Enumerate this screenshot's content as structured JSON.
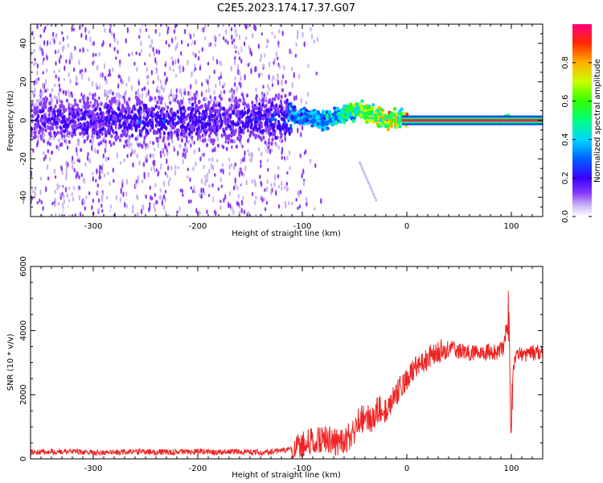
{
  "figure": {
    "title": "C2E5.2023.174.17.37.G07"
  },
  "chart_data": [
    {
      "type": "heatmap",
      "xlabel": "Height of straight line (km)",
      "ylabel": "Frequency (Hz)",
      "xlim": [
        -360,
        130
      ],
      "ylim": [
        -50,
        50
      ],
      "xticks": [
        -300,
        -200,
        -100,
        0,
        100
      ],
      "yticks": [
        -40,
        -20,
        0,
        20,
        40
      ],
      "colorbar": {
        "label": "Normalized spectral amplitude",
        "ticks": [
          "0.0",
          "0.2",
          "0.4",
          "0.6",
          "0.8"
        ],
        "range": [
          0,
          1
        ],
        "colormap": "rainbow"
      },
      "series": [
        {
          "x": [
            -360,
            -300,
            -250,
            -200,
            -150,
            -120,
            -110,
            -100,
            -80,
            -60,
            -45,
            -35,
            -25,
            -15,
            -5,
            0,
            20,
            50,
            90,
            95,
            100,
            130
          ],
          "y": [
            0,
            0,
            0,
            0,
            0,
            1,
            2,
            2,
            0,
            3,
            5,
            4,
            1,
            0,
            2,
            0,
            0,
            0,
            0,
            1,
            0,
            0
          ],
          "peak_amplitude": [
            0.25,
            0.3,
            0.3,
            0.3,
            0.3,
            0.35,
            0.45,
            0.45,
            0.5,
            0.6,
            0.75,
            0.8,
            0.85,
            0.9,
            0.7,
            0.95,
            0.95,
            0.95,
            0.95,
            0.6,
            0.95,
            0.95
          ]
        }
      ]
    },
    {
      "type": "line",
      "xlabel": "Height of straight line (km)",
      "ylabel": "SNR (10 * v/v)",
      "xlim": [
        -360,
        130
      ],
      "ylim": [
        0,
        6000
      ],
      "xticks": [
        -300,
        -200,
        -100,
        0,
        100
      ],
      "yticks": [
        0,
        2000,
        4000,
        6000
      ],
      "series": [
        {
          "color": "#ee2222",
          "x": [
            -360,
            -340,
            -320,
            -300,
            -280,
            -260,
            -240,
            -220,
            -200,
            -180,
            -160,
            -140,
            -120,
            -110,
            -100,
            -90,
            -80,
            -70,
            -60,
            -55,
            -50,
            -45,
            -40,
            -35,
            -30,
            -25,
            -20,
            -15,
            -10,
            -5,
            0,
            5,
            10,
            15,
            20,
            25,
            30,
            35,
            40,
            50,
            60,
            70,
            80,
            85,
            90,
            93,
            95,
            97,
            98,
            99,
            100,
            101,
            103,
            105,
            110,
            115,
            120,
            125,
            130
          ],
          "y": [
            200,
            220,
            230,
            200,
            210,
            220,
            210,
            220,
            230,
            210,
            220,
            200,
            240,
            300,
            400,
            550,
            600,
            550,
            500,
            700,
            900,
            1200,
            1300,
            1200,
            1450,
            1600,
            1500,
            1800,
            2000,
            2300,
            2500,
            2700,
            2900,
            3000,
            3100,
            3300,
            3400,
            3400,
            3500,
            3350,
            3300,
            3300,
            3350,
            3300,
            3400,
            3500,
            4000,
            4600,
            3800,
            2200,
            900,
            2500,
            3000,
            3300,
            3300,
            3250,
            3300,
            3350,
            3300
          ]
        }
      ]
    }
  ]
}
